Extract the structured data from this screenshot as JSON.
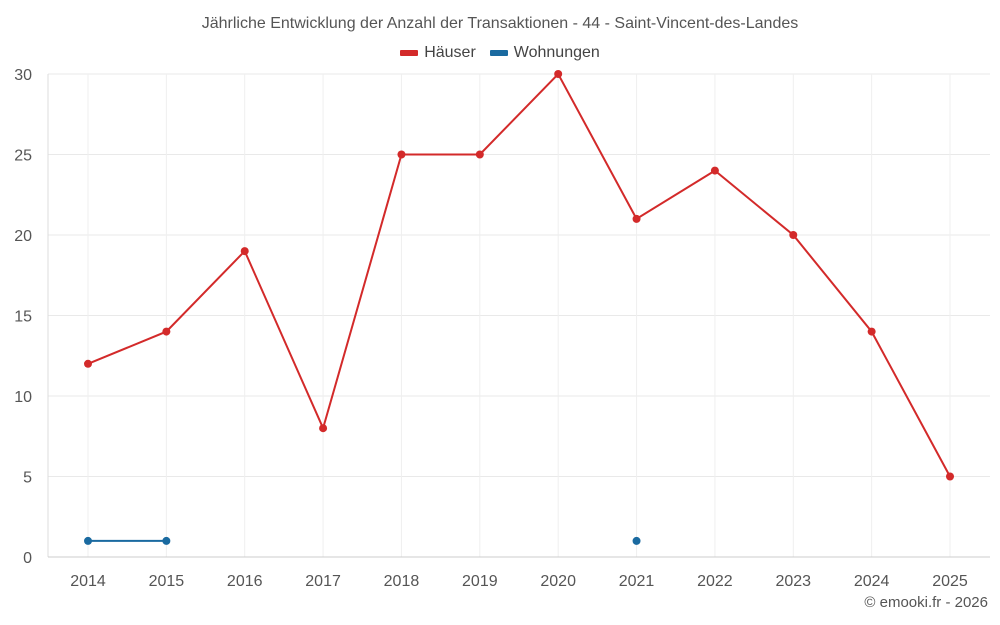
{
  "chart_data": {
    "type": "line",
    "title": "Jährliche Entwicklung der Anzahl der Transaktionen - 44 - Saint-Vincent-des-Landes",
    "categories": [
      "2014",
      "2015",
      "2016",
      "2017",
      "2018",
      "2019",
      "2020",
      "2021",
      "2022",
      "2023",
      "2024",
      "2025"
    ],
    "series": [
      {
        "name": "Häuser",
        "color": "#d32a2a",
        "values": [
          12,
          14,
          19,
          8,
          25,
          25,
          30,
          21,
          24,
          20,
          14,
          5
        ]
      },
      {
        "name": "Wohnungen",
        "color": "#1a6aa0",
        "values": [
          1,
          1,
          null,
          null,
          null,
          null,
          null,
          1,
          null,
          null,
          null,
          null
        ]
      }
    ],
    "yticks": [
      0,
      5,
      10,
      15,
      20,
      25,
      30
    ],
    "ylim": [
      0,
      30
    ],
    "grid": true,
    "legend_position": "top-center",
    "xlabel": "",
    "ylabel": ""
  },
  "footer": {
    "credit": "© emooki.fr - 2026"
  }
}
